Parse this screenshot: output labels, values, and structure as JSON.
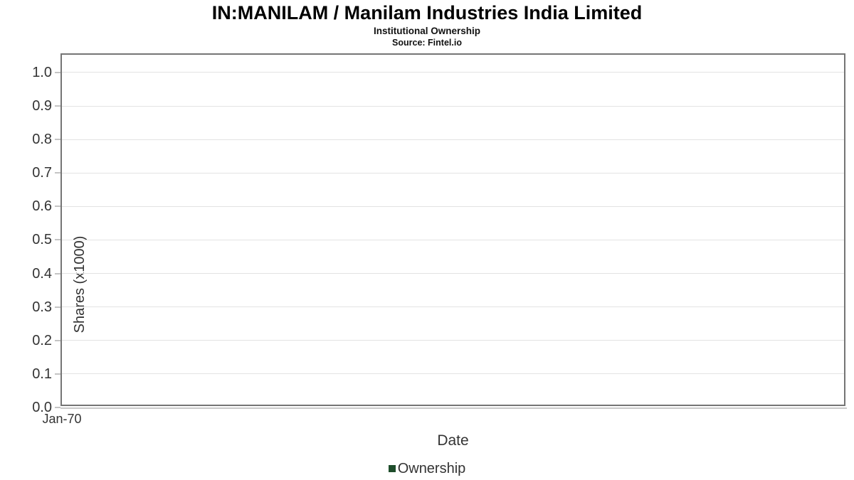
{
  "chart_data": {
    "type": "line",
    "title": "IN:MANILAM / Manilam Industries India Limited",
    "subtitle": "Institutional Ownership",
    "source": "Source: Fintel.io",
    "xlabel": "Date",
    "ylabel": "Shares (x1000)",
    "ylim": [
      0,
      1.053
    ],
    "grid": true,
    "plot_bg_color": "#ffffff",
    "border_color": "#757575",
    "gridline_color": "#e3e3e3",
    "text_color": "#333333",
    "y_ticks": [
      {
        "value": 0.0,
        "label": "0.0"
      },
      {
        "value": 0.1,
        "label": "0.1"
      },
      {
        "value": 0.2,
        "label": "0.2"
      },
      {
        "value": 0.3,
        "label": "0.3"
      },
      {
        "value": 0.4,
        "label": "0.4"
      },
      {
        "value": 0.5,
        "label": "0.5"
      },
      {
        "value": 0.6,
        "label": "0.6"
      },
      {
        "value": 0.7,
        "label": "0.7"
      },
      {
        "value": 0.8,
        "label": "0.8"
      },
      {
        "value": 0.9,
        "label": "0.9"
      },
      {
        "value": 1.0,
        "label": "1.0"
      }
    ],
    "x_ticks": [
      {
        "pos": 0.0,
        "label": "Jan-70"
      }
    ],
    "series": [
      {
        "name": "Ownership",
        "color": "#1e4d2b",
        "x": [],
        "values": []
      }
    ],
    "legend": {
      "position": "bottom",
      "entries": [
        {
          "label": "Ownership",
          "color": "#1e4d2b"
        }
      ]
    }
  }
}
